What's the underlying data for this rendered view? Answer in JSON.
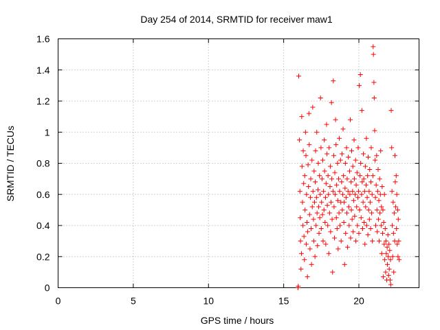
{
  "chart_data": {
    "type": "scatter",
    "title": "Day 254 of 2014, SRMTID for receiver maw1",
    "xlabel": "GPS time / hours",
    "ylabel": "SRMTID / TECUs",
    "xlim": [
      0,
      24
    ],
    "ylim": [
      0,
      1.6
    ],
    "xticks": [
      0,
      5,
      10,
      15,
      20
    ],
    "yticks": [
      0,
      0.2,
      0.4,
      0.6,
      0.8,
      1,
      1.2,
      1.4,
      1.6
    ],
    "xtick_labels": [
      "0",
      "5",
      "10",
      "15",
      "20"
    ],
    "ytick_labels": [
      "0",
      "0.2",
      "0.4",
      "0.6",
      "0.8",
      "1",
      "1.2",
      "1.4",
      "1.6"
    ],
    "grid": true,
    "marker": "+",
    "color": "#ff0000",
    "series": [
      {
        "name": "SRMTID",
        "points": [
          [
            15.95,
            0.0
          ],
          [
            15.97,
            0.01
          ],
          [
            16.0,
            1.36
          ],
          [
            16.05,
            0.95
          ],
          [
            16.08,
            0.62
          ],
          [
            16.1,
            0.45
          ],
          [
            16.12,
            0.3
          ],
          [
            16.15,
            0.12
          ],
          [
            16.18,
            0.22
          ],
          [
            16.2,
            1.1
          ],
          [
            16.22,
            0.78
          ],
          [
            16.25,
            0.55
          ],
          [
            16.28,
            0.4
          ],
          [
            16.3,
            0.88
          ],
          [
            16.33,
            0.67
          ],
          [
            16.35,
            0.33
          ],
          [
            16.38,
            0.18
          ],
          [
            16.4,
            0.72
          ],
          [
            16.42,
            0.5
          ],
          [
            16.45,
            1.0
          ],
          [
            16.48,
            0.85
          ],
          [
            16.5,
            0.28
          ],
          [
            16.52,
            0.6
          ],
          [
            16.55,
            0.42
          ],
          [
            16.58,
            0.07
          ],
          [
            16.6,
            0.36
          ],
          [
            16.62,
            0.79
          ],
          [
            16.65,
            0.65
          ],
          [
            16.68,
            1.12
          ],
          [
            16.7,
            0.92
          ],
          [
            16.72,
            0.47
          ],
          [
            16.75,
            0.25
          ],
          [
            16.78,
            0.58
          ],
          [
            16.8,
            0.7
          ],
          [
            16.82,
            0.38
          ],
          [
            16.85,
            0.15
          ],
          [
            16.88,
            0.82
          ],
          [
            16.9,
            0.52
          ],
          [
            16.93,
            1.16
          ],
          [
            16.95,
            0.62
          ],
          [
            16.98,
            0.44
          ],
          [
            17.0,
            0.3
          ],
          [
            17.02,
            0.75
          ],
          [
            17.05,
            0.55
          ],
          [
            17.08,
            0.2
          ],
          [
            17.1,
            0.68
          ],
          [
            17.12,
            0.88
          ],
          [
            17.15,
            0.4
          ],
          [
            17.18,
            0.58
          ],
          [
            17.2,
            1.0
          ],
          [
            17.22,
            0.48
          ],
          [
            17.25,
            0.27
          ],
          [
            17.28,
            0.63
          ],
          [
            17.3,
            0.8
          ],
          [
            17.33,
            0.52
          ],
          [
            17.35,
            0.35
          ],
          [
            17.38,
            0.72
          ],
          [
            17.4,
            0.45
          ],
          [
            17.43,
            0.6
          ],
          [
            17.45,
            1.22
          ],
          [
            17.48,
            0.9
          ],
          [
            17.5,
            0.38
          ],
          [
            17.52,
            0.55
          ],
          [
            17.55,
            0.7
          ],
          [
            17.58,
            0.47
          ],
          [
            17.6,
            0.82
          ],
          [
            17.62,
            0.3
          ],
          [
            17.65,
            0.62
          ],
          [
            17.68,
            0.5
          ],
          [
            17.7,
            0.95
          ],
          [
            17.72,
            0.75
          ],
          [
            17.75,
            0.42
          ],
          [
            17.78,
            0.58
          ],
          [
            17.8,
            0.28
          ],
          [
            17.82,
            0.67
          ],
          [
            17.85,
            1.05
          ],
          [
            17.88,
            0.86
          ],
          [
            17.9,
            0.53
          ],
          [
            17.93,
            0.4
          ],
          [
            17.95,
            0.72
          ],
          [
            17.98,
            0.6
          ],
          [
            18.0,
            0.22
          ],
          [
            18.02,
            0.9
          ],
          [
            18.05,
            0.48
          ],
          [
            18.08,
            0.65
          ],
          [
            18.1,
            0.78
          ],
          [
            18.12,
            0.36
          ],
          [
            18.15,
            0.55
          ],
          [
            18.18,
            1.19
          ],
          [
            18.2,
            0.7
          ],
          [
            18.22,
            0.44
          ],
          [
            18.25,
            0.1
          ],
          [
            18.28,
            0.62
          ],
          [
            18.3,
            1.33
          ],
          [
            18.33,
            0.85
          ],
          [
            18.35,
            0.52
          ],
          [
            18.38,
            0.32
          ],
          [
            18.4,
            0.74
          ],
          [
            18.42,
            0.6
          ],
          [
            18.45,
            1.08
          ],
          [
            18.48,
            0.92
          ],
          [
            18.5,
            0.45
          ],
          [
            18.52,
            0.66
          ],
          [
            18.55,
            0.38
          ],
          [
            18.58,
            0.8
          ],
          [
            18.6,
            0.56
          ],
          [
            18.62,
            0.25
          ],
          [
            18.65,
            0.7
          ],
          [
            18.68,
            0.48
          ],
          [
            18.7,
            0.96
          ],
          [
            18.72,
            0.62
          ],
          [
            18.75,
            0.4
          ],
          [
            18.78,
            0.82
          ],
          [
            18.8,
            0.55
          ],
          [
            18.82,
            0.3
          ],
          [
            18.85,
            0.68
          ],
          [
            18.88,
            0.86
          ],
          [
            18.9,
            0.5
          ],
          [
            18.93,
            0.6
          ],
          [
            18.95,
            1.02
          ],
          [
            18.98,
            0.72
          ],
          [
            19.0,
            0.42
          ],
          [
            19.02,
            0.55
          ],
          [
            19.05,
            0.15
          ],
          [
            19.08,
            0.64
          ],
          [
            19.1,
            0.8
          ],
          [
            19.12,
            0.35
          ],
          [
            19.15,
            0.58
          ],
          [
            19.18,
            0.9
          ],
          [
            19.2,
            0.48
          ],
          [
            19.22,
            0.7
          ],
          [
            19.25,
            0.26
          ],
          [
            19.28,
            0.62
          ],
          [
            19.3,
            0.84
          ],
          [
            19.33,
            0.52
          ],
          [
            19.35,
            0.4
          ],
          [
            19.38,
            0.75
          ],
          [
            19.4,
            0.6
          ],
          [
            19.43,
            1.08
          ],
          [
            19.45,
            0.32
          ],
          [
            19.48,
            0.68
          ],
          [
            19.5,
            0.5
          ],
          [
            19.52,
            0.88
          ],
          [
            19.55,
            0.44
          ],
          [
            19.58,
            0.62
          ],
          [
            19.6,
            0.78
          ],
          [
            19.62,
            0.36
          ],
          [
            19.65,
            0.56
          ],
          [
            19.68,
            0.95
          ],
          [
            19.7,
            0.7
          ],
          [
            19.72,
            0.46
          ],
          [
            19.75,
            0.6
          ],
          [
            19.78,
            0.82
          ],
          [
            19.8,
            0.3
          ],
          [
            19.82,
            0.66
          ],
          [
            19.85,
            0.52
          ],
          [
            19.88,
            0.74
          ],
          [
            19.9,
            0.4
          ],
          [
            19.93,
            0.58
          ],
          [
            19.95,
            0.9
          ],
          [
            19.98,
            0.62
          ],
          [
            20.0,
            0.35
          ],
          [
            20.02,
            1.3
          ],
          [
            20.05,
            0.5
          ],
          [
            20.08,
            0.72
          ],
          [
            20.1,
            1.37
          ],
          [
            20.12,
            0.8
          ],
          [
            20.15,
            0.45
          ],
          [
            20.18,
            0.6
          ],
          [
            20.2,
            1.14
          ],
          [
            20.22,
            0.68
          ],
          [
            20.25,
            0.38
          ],
          [
            20.28,
            0.55
          ],
          [
            20.3,
            0.86
          ],
          [
            20.33,
            0.7
          ],
          [
            20.35,
            0.42
          ],
          [
            20.38,
            0.62
          ],
          [
            20.4,
            0.28
          ],
          [
            20.43,
            0.78
          ],
          [
            20.45,
            0.52
          ],
          [
            20.48,
            0.66
          ],
          [
            20.5,
            0.96
          ],
          [
            20.52,
            0.4
          ],
          [
            20.55,
            0.58
          ],
          [
            20.58,
            0.72
          ],
          [
            20.6,
            0.34
          ],
          [
            20.62,
            0.84
          ],
          [
            20.65,
            0.5
          ],
          [
            20.68,
            0.62
          ],
          [
            20.7,
            0.44
          ],
          [
            20.72,
            0.76
          ],
          [
            20.75,
            0.55
          ],
          [
            20.78,
            0.38
          ],
          [
            20.8,
            0.68
          ],
          [
            20.82,
            0.9
          ],
          [
            20.85,
            0.48
          ],
          [
            20.88,
            0.6
          ],
          [
            20.9,
            0.3
          ],
          [
            20.93,
            0.72
          ],
          [
            20.95,
            1.55
          ],
          [
            20.97,
            1.5
          ],
          [
            21.0,
            1.32
          ],
          [
            21.02,
            1.22
          ],
          [
            21.05,
            1.01
          ],
          [
            21.08,
            0.82
          ],
          [
            21.1,
            0.58
          ],
          [
            21.12,
            0.4
          ],
          [
            21.15,
            0.66
          ],
          [
            21.18,
            0.85
          ],
          [
            21.2,
            0.5
          ],
          [
            21.22,
            0.36
          ],
          [
            21.25,
            0.62
          ],
          [
            21.28,
            0.76
          ],
          [
            21.3,
            0.44
          ],
          [
            21.33,
            0.56
          ],
          [
            21.35,
            0.3
          ],
          [
            21.38,
            0.7
          ],
          [
            21.4,
            0.48
          ],
          [
            21.43,
            0.6
          ],
          [
            21.45,
            0.88
          ],
          [
            21.48,
            0.4
          ],
          [
            21.5,
            0.52
          ],
          [
            21.52,
            0.22
          ],
          [
            21.55,
            0.65
          ],
          [
            21.58,
            0.35
          ],
          [
            21.6,
            0.5
          ],
          [
            21.62,
            0.07
          ],
          [
            21.65,
            0.42
          ],
          [
            21.68,
            0.28
          ],
          [
            21.7,
            0.6
          ],
          [
            21.72,
            0.18
          ],
          [
            21.75,
            0.38
          ],
          [
            21.78,
            0.1
          ],
          [
            21.8,
            0.3
          ],
          [
            21.82,
            0.22
          ],
          [
            21.85,
            0.05
          ],
          [
            21.88,
            0.26
          ],
          [
            21.9,
            0.15
          ],
          [
            21.93,
            0.34
          ],
          [
            21.95,
            0.2
          ],
          [
            21.98,
            0.08
          ],
          [
            22.0,
            0.28
          ],
          [
            22.02,
            0.12
          ],
          [
            22.05,
            0.24
          ],
          [
            22.08,
            0.05
          ],
          [
            22.1,
            0.18
          ],
          [
            22.12,
            0.02
          ],
          [
            22.15,
            1.14
          ],
          [
            22.18,
            0.9
          ],
          [
            22.2,
            0.62
          ],
          [
            22.22,
            0.4
          ],
          [
            22.25,
            0.2
          ],
          [
            22.28,
            0.55
          ],
          [
            22.3,
            0.35
          ],
          [
            22.32,
            0.1
          ],
          [
            22.35,
            0.48
          ],
          [
            22.38,
            0.3
          ],
          [
            22.4,
            0.85
          ],
          [
            22.42,
            0.68
          ],
          [
            22.45,
            0.52
          ],
          [
            22.48,
            0.72
          ],
          [
            22.5,
            0.38
          ],
          [
            22.52,
            0.6
          ],
          [
            22.55,
            0.28
          ],
          [
            22.58,
            0.5
          ],
          [
            22.6,
            0.2
          ],
          [
            22.62,
            0.44
          ],
          [
            22.65,
            0.3
          ],
          [
            22.68,
            0.18
          ]
        ]
      }
    ]
  }
}
